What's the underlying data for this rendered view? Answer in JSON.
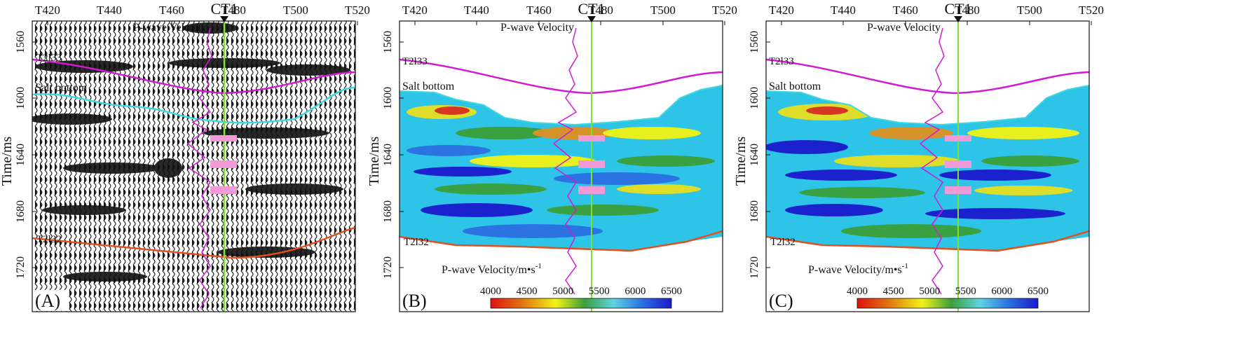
{
  "panels": [
    {
      "id": "A",
      "label": "(A)",
      "kind": "seismic"
    },
    {
      "id": "B",
      "label": "(B)",
      "kind": "velocity"
    },
    {
      "id": "C",
      "label": "(C)",
      "kind": "velocity"
    }
  ],
  "x_axis": {
    "ticks": [
      "T420",
      "T440",
      "T460",
      "T480",
      "T500",
      "T520"
    ]
  },
  "y_axis": {
    "label": "Time/ms",
    "ticks": [
      "1560",
      "1600",
      "1640",
      "1680",
      "1720"
    ]
  },
  "well": {
    "name": "CT1",
    "log_label": "P-wave Velocity"
  },
  "horizons": {
    "top": "T2l33",
    "salt": "Salt bottom",
    "bottom": "T2l32"
  },
  "colorbar": {
    "label": "P-wave Velocity/m•s",
    "unit_superscript": "-1",
    "ticks": [
      "4000",
      "4500",
      "5000",
      "5500",
      "6000",
      "6500"
    ],
    "colors": [
      "#e01010",
      "#e07a10",
      "#f2f214",
      "#3aa03a",
      "#5fd4e4",
      "#2a6fe0",
      "#1a1acc"
    ]
  }
}
